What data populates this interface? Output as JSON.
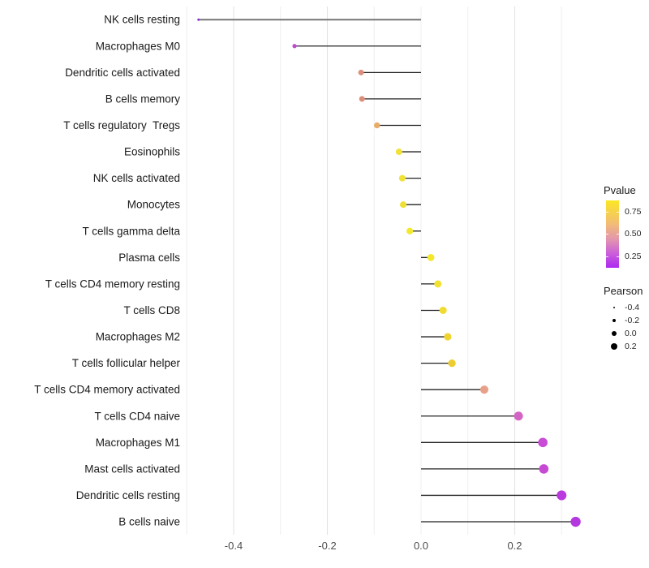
{
  "chart_data": {
    "type": "scatter",
    "subtype": "horizontal-lollipop",
    "title": "",
    "xlabel": "",
    "ylabel": "",
    "xlim": [
      -0.505,
      0.36
    ],
    "x_ticks": [
      -0.4,
      -0.2,
      0.0,
      0.2
    ],
    "x_tick_labels": [
      "-0.4",
      "-0.2",
      "0.0",
      "0.2"
    ],
    "baseline": 0.0,
    "grid": "vertical gridlines every 0.1 from -0.5 to 0.3, no horizontal gridlines, no panel border",
    "legend_position": "right",
    "categories": [
      "NK cells resting",
      "Macrophages M0",
      "Dendritic cells activated",
      "B cells memory",
      "T cells regulatory  Tregs",
      "Eosinophils",
      "NK cells activated",
      "Monocytes",
      "T cells gamma delta",
      "Plasma cells",
      "T cells CD4 memory resting",
      "T cells CD8",
      "Macrophages M2",
      "T cells follicular helper",
      "T cells CD4 memory activated",
      "T cells CD4 naive",
      "Macrophages M1",
      "Mast cells activated",
      "Dendritic cells resting",
      "B cells naive"
    ],
    "series": [
      {
        "name": "Pearson",
        "values": [
          -0.475,
          -0.27,
          -0.128,
          -0.126,
          -0.094,
          -0.047,
          -0.04,
          -0.038,
          -0.024,
          0.021,
          0.036,
          0.047,
          0.057,
          0.066,
          0.135,
          0.208,
          0.26,
          0.262,
          0.3,
          0.33
        ]
      }
    ],
    "point_colors": [
      "#8C2BD0",
      "#BE4DCB",
      "#DD8F7C",
      "#DC8E7A",
      "#E9AD68",
      "#F1E138",
      "#F0E236",
      "#EFDF33",
      "#F2E92E",
      "#F3E72C",
      "#F2E22E",
      "#F0DB30",
      "#EFD42F",
      "#EDCC2E",
      "#E8A189",
      "#D464C3",
      "#C84CD5",
      "#C74AD4",
      "#BA3ADF",
      "#B438DF"
    ]
  },
  "legends": {
    "pvalue": {
      "title": "Pvalue",
      "tick_labels": [
        "0.75",
        "0.50",
        "0.25"
      ],
      "gradient_stops": [
        "#FBE723",
        "#F2BC76",
        "#E294AE",
        "#C95BDC",
        "#AC28F0"
      ]
    },
    "pearson": {
      "title": "Pearson",
      "entries": [
        {
          "label": "-0.4",
          "value": -0.4
        },
        {
          "label": "-0.2",
          "value": -0.2
        },
        {
          "label": "0.0",
          "value": 0.0
        },
        {
          "label": "0.2",
          "value": 0.2
        }
      ]
    }
  }
}
